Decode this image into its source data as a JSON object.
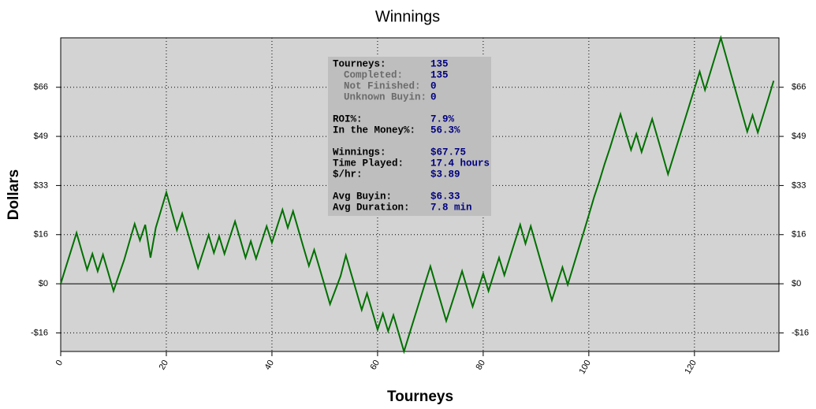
{
  "chart_data": {
    "type": "line",
    "title": "Winnings",
    "xlabel": "Tourneys",
    "ylabel": "Dollars",
    "x": [
      0,
      1,
      2,
      3,
      4,
      5,
      6,
      7,
      8,
      9,
      10,
      11,
      12,
      13,
      14,
      15,
      16,
      17,
      18,
      19,
      20,
      21,
      22,
      23,
      24,
      25,
      26,
      27,
      28,
      29,
      30,
      31,
      32,
      33,
      34,
      35,
      36,
      37,
      38,
      39,
      40,
      41,
      42,
      43,
      44,
      45,
      46,
      47,
      48,
      49,
      50,
      51,
      52,
      53,
      54,
      55,
      56,
      57,
      58,
      59,
      60,
      61,
      62,
      63,
      64,
      65,
      66,
      67,
      68,
      69,
      70,
      71,
      72,
      73,
      74,
      75,
      76,
      77,
      78,
      79,
      80,
      81,
      82,
      83,
      84,
      85,
      86,
      87,
      88,
      89,
      90,
      91,
      92,
      93,
      94,
      95,
      96,
      97,
      98,
      99,
      100,
      101,
      102,
      103,
      104,
      105,
      106,
      107,
      108,
      109,
      110,
      111,
      112,
      113,
      114,
      115,
      116,
      117,
      118,
      119,
      120,
      121,
      122,
      123,
      124,
      125,
      126,
      127,
      128,
      129,
      130,
      131,
      132,
      133,
      134,
      135
    ],
    "series": [
      {
        "color": "#007000",
        "values": [
          0,
          5.7,
          11.3,
          17,
          10.8,
          4.7,
          10,
          4.2,
          9.7,
          3.7,
          -2.4,
          2.8,
          7.9,
          14,
          20,
          14.5,
          19.7,
          8.7,
          18.7,
          24.6,
          30.5,
          24.2,
          17.9,
          23.4,
          17.4,
          11.4,
          5.3,
          10.8,
          16.3,
          10.3,
          15.8,
          10,
          15.4,
          20.8,
          14.8,
          8.7,
          14.2,
          8.4,
          13.8,
          19.2,
          13.7,
          19.2,
          24.7,
          18.7,
          24.2,
          18.1,
          12,
          6,
          11.3,
          5.3,
          -0.7,
          -6.8,
          -2.1,
          2.6,
          9.5,
          3.4,
          -2.6,
          -8.7,
          -3.2,
          -9.2,
          -15.3,
          -10,
          -15.8,
          -10.5,
          -16.5,
          -22.6,
          -16.9,
          -11.2,
          -5.5,
          0.2,
          5.8,
          -0.3,
          -6.3,
          -12.4,
          -6.9,
          -1.4,
          4.2,
          -1.7,
          -7.6,
          -2.1,
          3.4,
          -2.4,
          3.2,
          8.7,
          2.9,
          8.5,
          14.1,
          19.7,
          13.4,
          19.2,
          13,
          6.8,
          0.7,
          -5.5,
          0,
          5.5,
          -0.3,
          5.5,
          11.3,
          17.1,
          23,
          29,
          34.3,
          40,
          45.3,
          51,
          56.6,
          50.6,
          44.7,
          50,
          44,
          49.5,
          55,
          48.9,
          42.8,
          36.6,
          42.3,
          48,
          53.7,
          59.4,
          65.1,
          70.8,
          64.7,
          70.5,
          76.3,
          82.1,
          75.8,
          69.5,
          63.2,
          57,
          50.8,
          56.3,
          50.5,
          56.2,
          61.9,
          67.75
        ]
      }
    ],
    "xlim": [
      0,
      136
    ],
    "ylim": [
      -22.6,
      82.1
    ],
    "xticks": [
      0,
      20,
      40,
      60,
      80,
      100,
      120
    ],
    "yticks": [
      {
        "value": -16.4,
        "label": "-$16"
      },
      {
        "value": 0,
        "label": "$0"
      },
      {
        "value": 16.4,
        "label": "$16"
      },
      {
        "value": 32.8,
        "label": "$33"
      },
      {
        "value": 49.2,
        "label": "$49"
      },
      {
        "value": 65.6,
        "label": "$66"
      }
    ],
    "grid": true,
    "stats": [
      [
        {
          "label": "Tourneys:",
          "value": "135",
          "details": [
            {
              "label": "Completed:",
              "value": "135"
            },
            {
              "label": "Not Finished:",
              "value": "0"
            },
            {
              "label": "Unknown Buyin:",
              "value": "0"
            }
          ]
        }
      ],
      [
        {
          "label": "ROI%:",
          "value": "7.9%"
        },
        {
          "label": "In the Money%:",
          "value": "56.3%"
        }
      ],
      [
        {
          "label": "Winnings:",
          "value": "$67.75"
        },
        {
          "label": "Time Played:",
          "value": "17.4 hours"
        },
        {
          "label": "$/hr:",
          "value": "$3.89"
        }
      ],
      [
        {
          "label": "Avg Buyin:",
          "value": "$6.33"
        },
        {
          "label": "Avg Duration:",
          "value": "7.8 min"
        }
      ]
    ]
  }
}
